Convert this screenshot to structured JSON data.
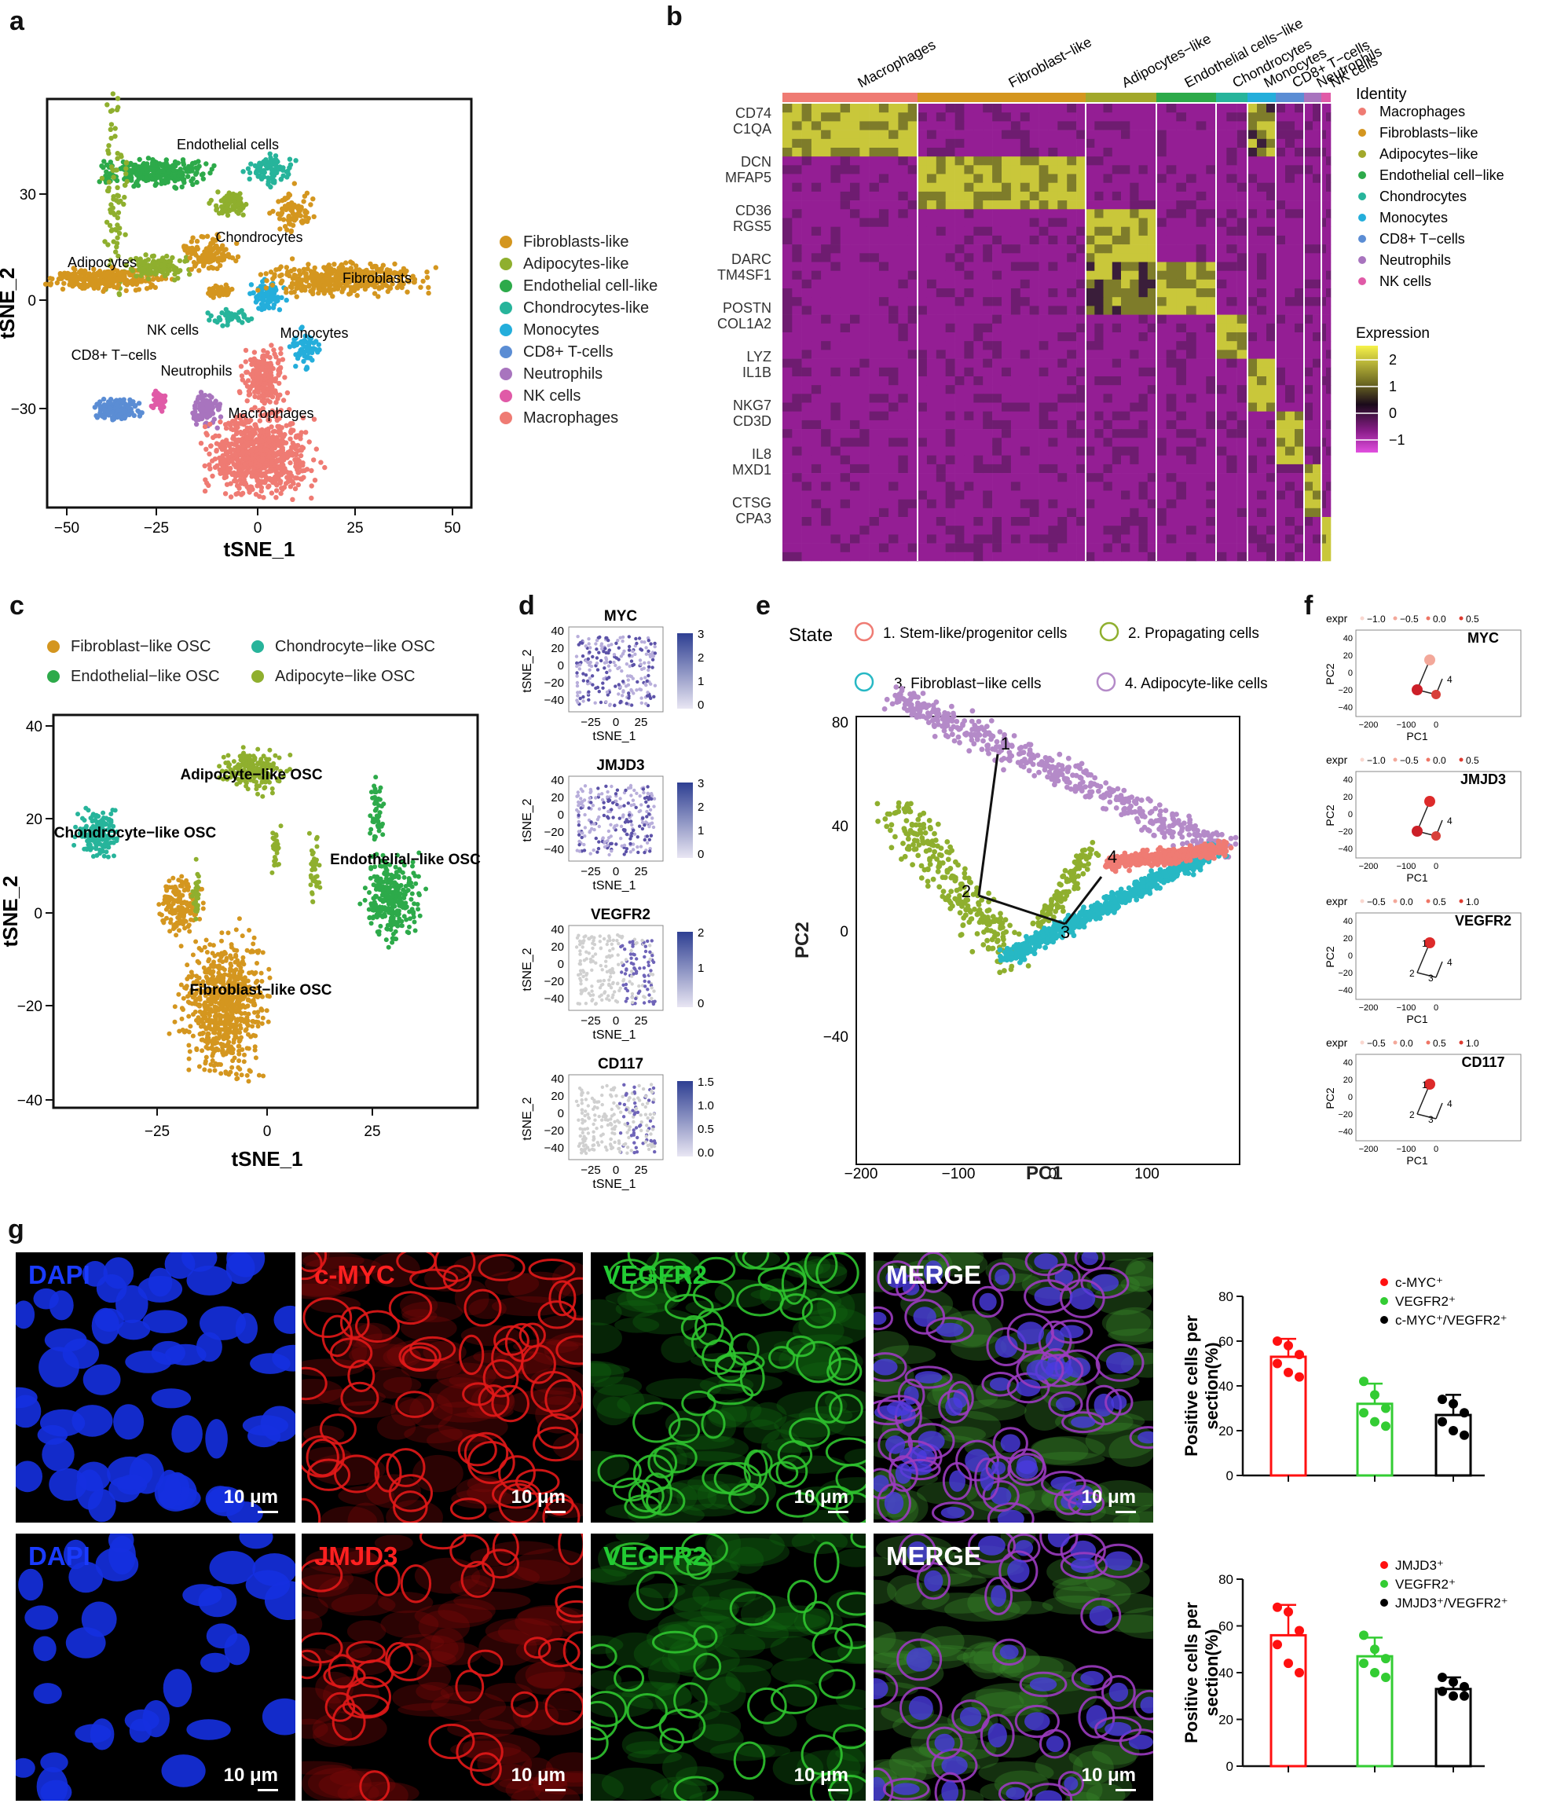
{
  "panels": {
    "a": "a",
    "b": "b",
    "c": "c",
    "d": "d",
    "e": "e",
    "f": "f",
    "g": "g"
  },
  "panel_a": {
    "xlabel": "tSNE_1",
    "ylabel": "tSNE_2",
    "xticks": [
      "−50",
      "−25",
      "0",
      "25",
      "50"
    ],
    "yticks": [
      "30",
      "0",
      "−30"
    ],
    "cluster_labels": [
      "Endothelial cells",
      "Chondrocytes",
      "Adipocytes",
      "Fibroblasts",
      "NK cells",
      "Monocytes",
      "CD8+ T−cells",
      "Neutrophils",
      "Macrophages"
    ],
    "legend": [
      {
        "label": "Fibroblasts-like",
        "color": "#D4961F"
      },
      {
        "label": "Adipocytes-like",
        "color": "#8FAF2E"
      },
      {
        "label": "Endothelial cell-like",
        "color": "#2DAA4A"
      },
      {
        "label": "Chondrocytes-like",
        "color": "#27B49B"
      },
      {
        "label": "Monocytes",
        "color": "#24AEDB"
      },
      {
        "label": "CD8+ T-cells",
        "color": "#5B8DD4"
      },
      {
        "label": "Neutrophils",
        "color": "#A874BE"
      },
      {
        "label": "NK cells",
        "color": "#E05AA7"
      },
      {
        "label": "Macrophages",
        "color": "#EF7B73"
      }
    ]
  },
  "panel_b": {
    "columns": [
      "Macrophages",
      "Fibroblast−like",
      "Adipocytes−like",
      "Endothelial cells−like",
      "Chondrocytes",
      "Monocytes",
      "CD8+ T−cells",
      "Neutrophils",
      "NK cells"
    ],
    "genes": [
      "CD74",
      "C1QA",
      "DCN",
      "MFAP5",
      "CD36",
      "RGS5",
      "DARC",
      "TM4SF1",
      "POSTN",
      "COL1A2",
      "LYZ",
      "IL1B",
      "NKG7",
      "CD3D",
      "IL8",
      "MXD1",
      "CTSG",
      "CPA3"
    ],
    "identity_title": "Identity",
    "identity": [
      {
        "label": "Macrophages",
        "color": "#EF7B73"
      },
      {
        "label": "Fibroblasts−like",
        "color": "#D4961F"
      },
      {
        "label": "Adipocytes−like",
        "color": "#A2A82B"
      },
      {
        "label": "Endothelial cell−like",
        "color": "#2DAA4A"
      },
      {
        "label": "Chondrocytes",
        "color": "#27B49B"
      },
      {
        "label": "Monocytes",
        "color": "#24AEDB"
      },
      {
        "label": "CD8+ T−cells",
        "color": "#5B8DD4"
      },
      {
        "label": "Neutrophils",
        "color": "#A874BE"
      },
      {
        "label": "NK cells",
        "color": "#E05AA7"
      }
    ],
    "expression_title": "Expression",
    "expression_ticks": [
      "2",
      "1",
      "0",
      "−1"
    ]
  },
  "panel_c": {
    "xlabel": "tSNE_1",
    "ylabel": "tSNE_2",
    "xticks": [
      "−25",
      "0",
      "25"
    ],
    "yticks": [
      "40",
      "20",
      "0",
      "−20",
      "−40"
    ],
    "legend": [
      {
        "label": "Fibroblast−like OSC",
        "color": "#D4961F"
      },
      {
        "label": "Chondrocyte−like OSC",
        "color": "#27B49B"
      },
      {
        "label": "Endothelial−like OSC",
        "color": "#2DAA4A"
      },
      {
        "label": "Adipocyte−like OSC",
        "color": "#8FAF2E"
      }
    ],
    "cluster_labels": [
      "Adipocyte−like OSC",
      "Chondrocyte−like OSC",
      "Endothelial−like OSC",
      "Fibroblast−like OSC"
    ]
  },
  "panel_d": {
    "plots": [
      {
        "title": "MYC",
        "scale": [
          "3",
          "2",
          "1",
          "0"
        ]
      },
      {
        "title": "JMJD3",
        "scale": [
          "3",
          "2",
          "1",
          "0"
        ]
      },
      {
        "title": "VEGFR2",
        "scale": [
          "2",
          "1",
          "0"
        ]
      },
      {
        "title": "CD117",
        "scale": [
          "1.5",
          "1.0",
          "0.5",
          "0.0"
        ]
      }
    ],
    "xlabel": "tSNE_1",
    "ylabel": "tSNE_2",
    "xticks": [
      "−25",
      "0",
      "25"
    ],
    "yticks": [
      "40",
      "20",
      "0",
      "−20",
      "−40"
    ]
  },
  "panel_e": {
    "state_label": "State",
    "states": [
      {
        "label": "1. Stem-like/progenitor cells",
        "color": "#EF7B73"
      },
      {
        "label": "2. Propagating cells",
        "color": "#8FAF2E"
      },
      {
        "label": "3. Fibroblast−like cells",
        "color": "#27B8C4"
      },
      {
        "label": "4. Adipocyte-like cells",
        "color": "#B48AC8"
      }
    ],
    "xlabel": "PC1",
    "ylabel": "PC2",
    "xticks": [
      "−200",
      "−100",
      "0",
      "100"
    ],
    "yticks": [
      "80",
      "40",
      "0",
      "−40"
    ],
    "nodes": [
      "1",
      "2",
      "3",
      "4"
    ]
  },
  "panel_f": {
    "plots": [
      {
        "title": "MYC",
        "expr_ticks": [
          "−1.0",
          "−0.5",
          "0.0",
          "0.5"
        ]
      },
      {
        "title": "JMJD3",
        "expr_ticks": [
          "−1.0",
          "−0.5",
          "0.0",
          "0.5"
        ]
      },
      {
        "title": "VEGFR2",
        "expr_ticks": [
          "−0.5",
          "0.0",
          "0.5",
          "1.0"
        ]
      },
      {
        "title": "CD117",
        "expr_ticks": [
          "−0.5",
          "0.0",
          "0.5",
          "1.0"
        ]
      }
    ],
    "expr_label": "expr",
    "xlabel": "PC1",
    "ylabel": "PC2",
    "xticks": [
      "−200",
      "−100",
      "0"
    ],
    "yticks": [
      "40",
      "20",
      "0",
      "−20",
      "−40"
    ]
  },
  "panel_g": {
    "row1": [
      {
        "caption": "DAPI",
        "color": "#1A3BFF",
        "scale": "10 μm"
      },
      {
        "caption": "c-MYC",
        "color": "#FF2020",
        "scale": "10 μm"
      },
      {
        "caption": "VEGFR2",
        "color": "#22CC33",
        "scale": "10 μm"
      },
      {
        "caption": "MERGE",
        "color": "#FFFFFF",
        "scale": "10 μm"
      }
    ],
    "row2": [
      {
        "caption": "DAPI",
        "color": "#1A3BFF",
        "scale": "10 μm"
      },
      {
        "caption": "JMJD3",
        "color": "#FF2020",
        "scale": "10 μm"
      },
      {
        "caption": "VEGFR2",
        "color": "#22CC33",
        "scale": "10 μm"
      },
      {
        "caption": "MERGE",
        "color": "#FFFFFF",
        "scale": "10 μm"
      }
    ]
  },
  "chart_data": [
    {
      "type": "bar",
      "title": "",
      "ylabel": "Positive cells per section(%)",
      "ylim": [
        0,
        80
      ],
      "yticks": [
        "0",
        "20",
        "40",
        "60",
        "80"
      ],
      "categories": [
        "c-MYC⁺",
        "VEGFR2⁺",
        "c-MYC⁺/VEGFR2⁺"
      ],
      "values": [
        53,
        32,
        27
      ],
      "errors": [
        8,
        9,
        9
      ],
      "colors": [
        "#FF1010",
        "#33CC33",
        "#000000"
      ],
      "points": [
        [
          60,
          58,
          54,
          50,
          46,
          44
        ],
        [
          42,
          36,
          30,
          28,
          24,
          22
        ],
        [
          34,
          32,
          28,
          24,
          20,
          18
        ]
      ]
    },
    {
      "type": "bar",
      "title": "",
      "ylabel": "Positive cells per section(%)",
      "ylim": [
        0,
        80
      ],
      "yticks": [
        "0",
        "20",
        "40",
        "60",
        "80"
      ],
      "categories": [
        "JMJD3⁺",
        "VEGFR2⁺",
        "JMJD3⁺/VEGFR2⁺"
      ],
      "values": [
        56,
        47,
        33
      ],
      "errors": [
        13,
        8,
        5
      ],
      "colors": [
        "#FF1010",
        "#33CC33",
        "#000000"
      ],
      "points": [
        [
          68,
          66,
          58,
          52,
          44,
          40
        ],
        [
          56,
          50,
          46,
          44,
          40,
          38
        ],
        [
          38,
          36,
          34,
          32,
          30,
          30
        ]
      ]
    }
  ]
}
